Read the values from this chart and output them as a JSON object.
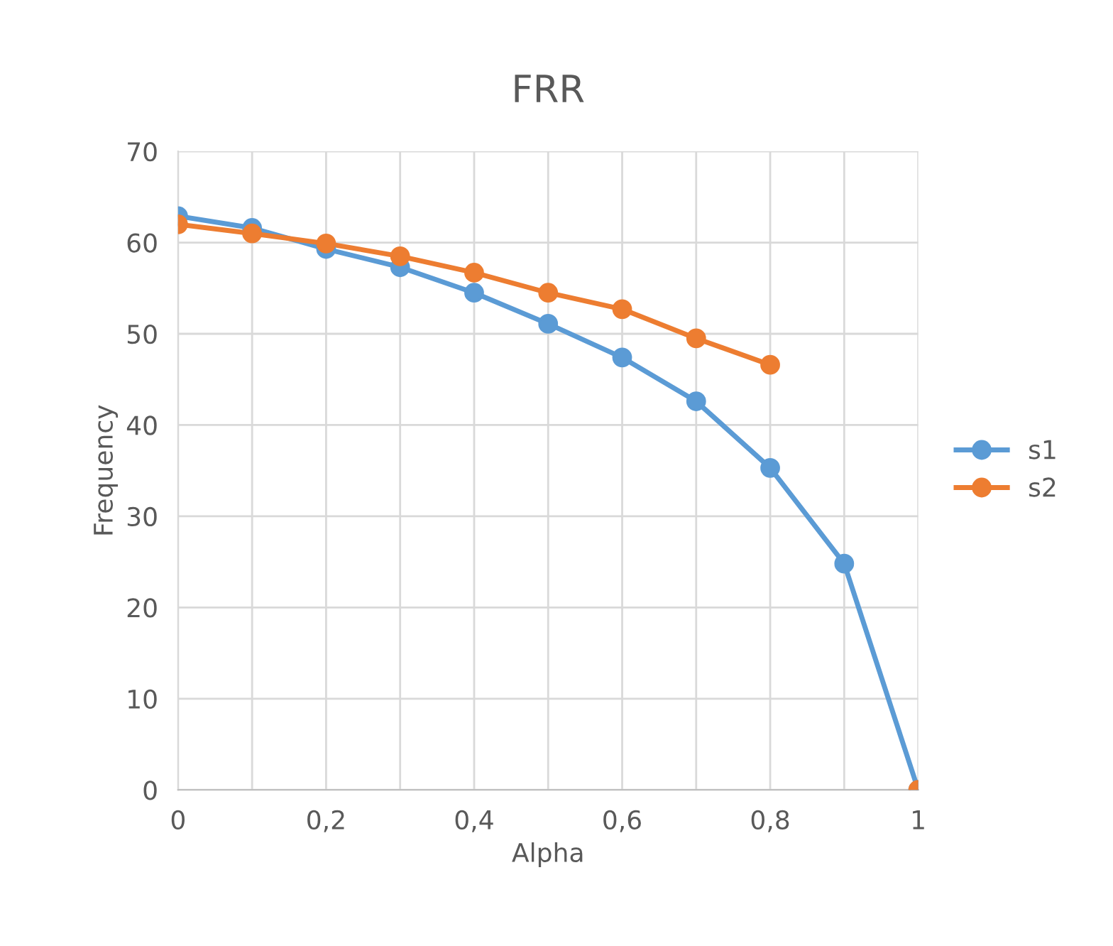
{
  "chart_data": {
    "type": "line",
    "title": "FRR",
    "xlabel": "Alpha",
    "ylabel": "Frequency",
    "x": [
      0,
      0.1,
      0.2,
      0.3,
      0.4,
      0.5,
      0.6,
      0.7,
      0.8,
      0.9,
      1
    ],
    "series": [
      {
        "name": "s1",
        "color": "#5b9bd5",
        "values": [
          62.9,
          61.6,
          59.3,
          57.3,
          54.5,
          51.1,
          47.4,
          42.6,
          35.3,
          24.8,
          0
        ]
      },
      {
        "name": "s2",
        "color": "#ed7d31",
        "values": [
          62.0,
          61.0,
          59.9,
          58.5,
          56.7,
          54.5,
          52.7,
          49.5,
          46.6,
          null,
          0
        ]
      }
    ],
    "xlim": [
      0,
      1
    ],
    "xticks": [
      0,
      {
        "value": 0.1,
        "label": null
      },
      {
        "value": 0.2,
        "label": "0,2"
      },
      {
        "value": 0.3,
        "label": null
      },
      {
        "value": 0.4,
        "label": "0,4"
      },
      {
        "value": 0.5,
        "label": null
      },
      {
        "value": 0.6,
        "label": "0,6"
      },
      {
        "value": 0.7,
        "label": null
      },
      {
        "value": 0.8,
        "label": "0,8"
      },
      {
        "value": 0.9,
        "label": null
      },
      1
    ],
    "ylim": [
      0,
      70
    ],
    "yticks": [
      0,
      10,
      20,
      30,
      40,
      50,
      60,
      70
    ],
    "grid": true,
    "legend": "right",
    "marker": "circle",
    "line_style": "solid"
  }
}
